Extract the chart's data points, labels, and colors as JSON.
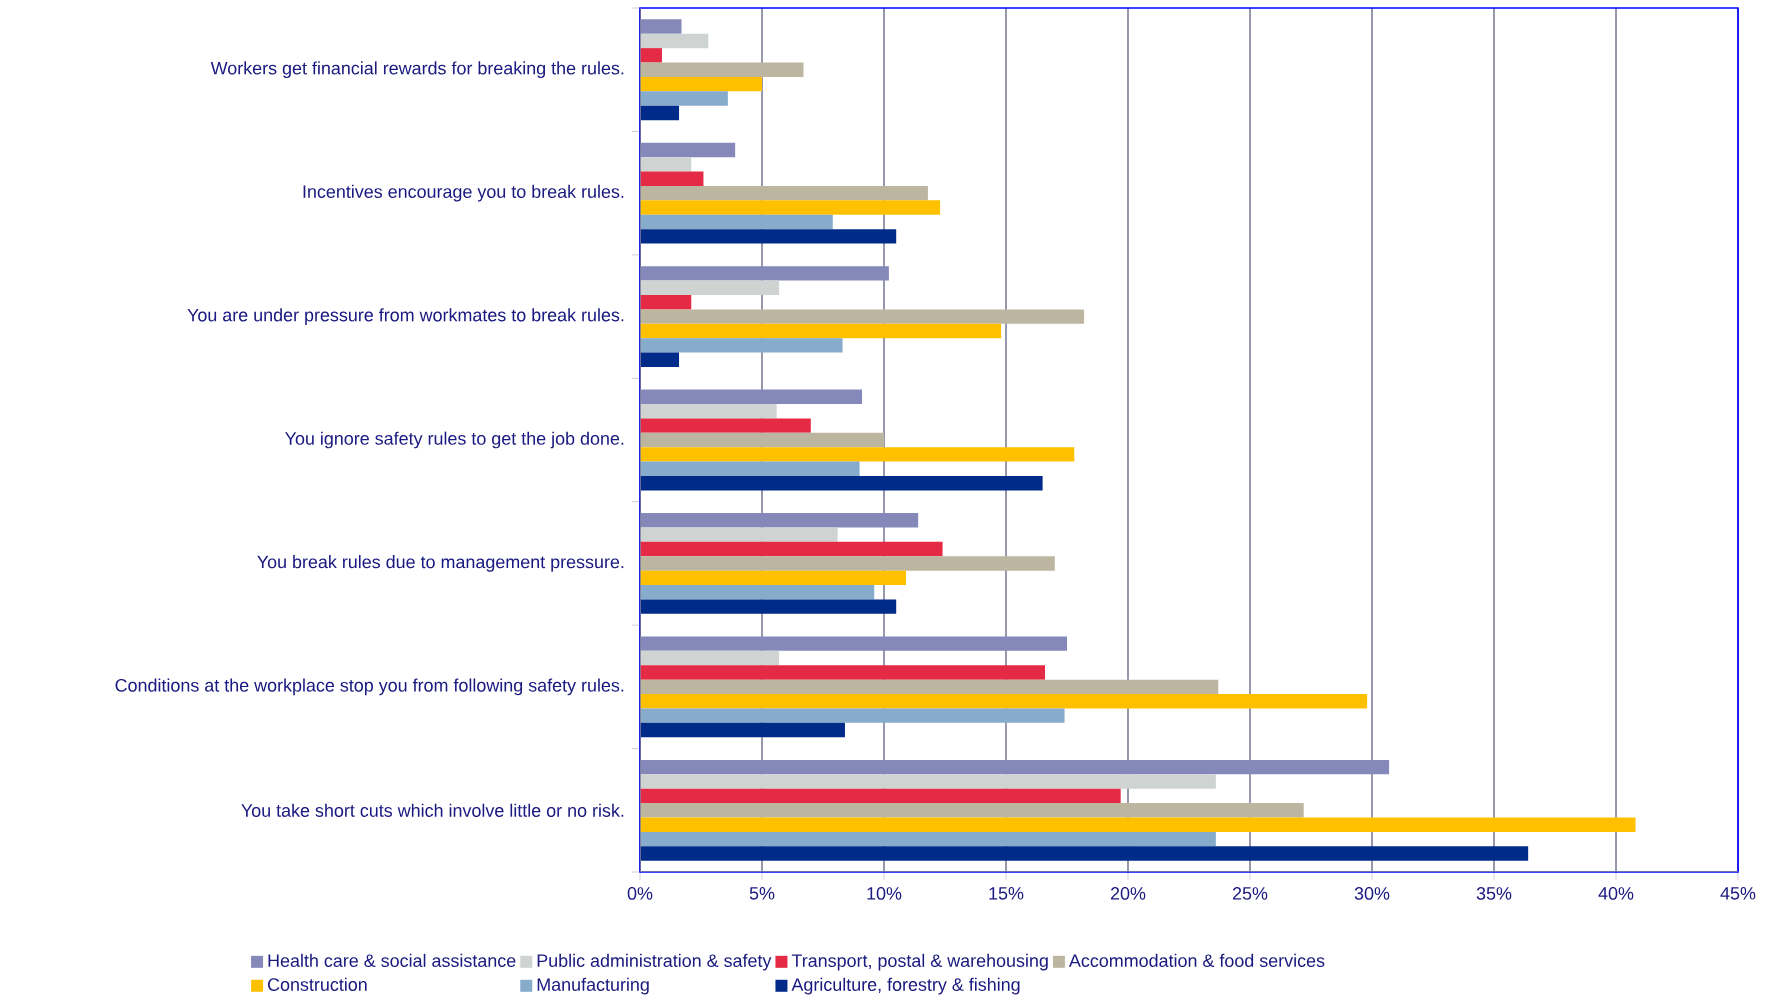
{
  "chart_data": {
    "type": "bar",
    "orientation": "horizontal",
    "grid": "x",
    "legend": "bottom",
    "categories": [
      "Workers get financial rewards for breaking the rules.",
      "Incentives encourage you to break rules.",
      "You are under pressure from workmates to break rules.",
      "You ignore safety rules to get the job done.",
      "You break rules due to management pressure.",
      "Conditions at the workplace stop you from following safety rules.",
      "You take short cuts which involve little or no risk."
    ],
    "xlim": [
      0,
      45
    ],
    "xticks": [
      {
        "value": 0,
        "label": "0%"
      },
      {
        "value": 5,
        "label": "5%"
      },
      {
        "value": 10,
        "label": "10%"
      },
      {
        "value": 15,
        "label": "15%"
      },
      {
        "value": 20,
        "label": "20%"
      },
      {
        "value": 25,
        "label": "25%"
      },
      {
        "value": 30,
        "label": "30%"
      },
      {
        "value": 35,
        "label": "35%"
      },
      {
        "value": 40,
        "label": "40%"
      },
      {
        "value": 45,
        "label": "45%"
      }
    ],
    "series": [
      {
        "name": "Health care & social assistance",
        "color": "#8489b9",
        "values": [
          1.7,
          3.9,
          10.2,
          9.1,
          11.4,
          17.5,
          30.7
        ]
      },
      {
        "name": "Public administration & safety",
        "color": "#cfd3d2",
        "values": [
          2.8,
          2.1,
          5.7,
          5.6,
          8.1,
          5.7,
          23.6
        ]
      },
      {
        "name": "Transport, postal & warehousing",
        "color": "#e52a45",
        "values": [
          0.9,
          2.6,
          2.1,
          7.0,
          12.4,
          16.6,
          19.7
        ]
      },
      {
        "name": "Accommodation & food services",
        "color": "#bcb6a0",
        "values": [
          6.7,
          11.8,
          18.2,
          10.0,
          17.0,
          23.7,
          27.2
        ]
      },
      {
        "name": "Construction",
        "color": "#ffc000",
        "values": [
          5.0,
          12.3,
          14.8,
          17.8,
          10.9,
          29.8,
          40.8
        ]
      },
      {
        "name": "Manufacturing",
        "color": "#86abcb",
        "values": [
          3.6,
          7.9,
          8.3,
          9.0,
          9.6,
          17.4,
          23.6
        ]
      },
      {
        "name": "Agriculture, forestry & fishing",
        "color": "#002b88",
        "values": [
          1.6,
          10.5,
          1.6,
          16.5,
          10.5,
          8.4,
          36.4
        ]
      }
    ]
  }
}
